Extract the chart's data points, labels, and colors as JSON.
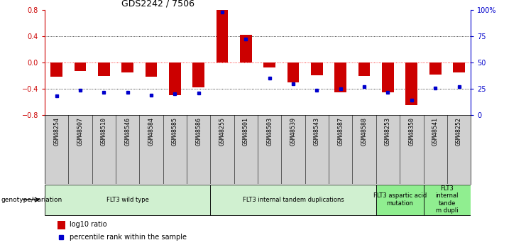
{
  "title": "GDS2242 / 7506",
  "samples": [
    "GSM48254",
    "GSM48507",
    "GSM48510",
    "GSM48546",
    "GSM48584",
    "GSM48585",
    "GSM48586",
    "GSM48255",
    "GSM48501",
    "GSM48503",
    "GSM48539",
    "GSM48543",
    "GSM48587",
    "GSM48588",
    "GSM48253",
    "GSM48350",
    "GSM48541",
    "GSM48252"
  ],
  "log10_ratio": [
    -0.22,
    -0.13,
    -0.2,
    -0.15,
    -0.22,
    -0.5,
    -0.38,
    0.8,
    0.42,
    -0.08,
    -0.3,
    -0.19,
    -0.45,
    -0.2,
    -0.45,
    -0.65,
    -0.18,
    -0.15
  ],
  "percentile_rank": [
    18,
    24,
    22,
    22,
    19,
    20,
    21,
    98,
    72,
    35,
    30,
    24,
    25,
    27,
    22,
    14,
    26,
    27
  ],
  "ylim_left": [
    -0.8,
    0.8
  ],
  "ylim_right": [
    0,
    100
  ],
  "yticks_left": [
    -0.8,
    -0.4,
    0.0,
    0.4,
    0.8
  ],
  "yticks_right": [
    0,
    25,
    50,
    75,
    100
  ],
  "ytick_labels_right": [
    "0",
    "25",
    "50",
    "75",
    "100%"
  ],
  "bar_color": "#cc0000",
  "dot_color": "#0000cc",
  "groups": [
    {
      "label": "FLT3 wild type",
      "start": 0,
      "end": 7,
      "color": "#d0f0d0"
    },
    {
      "label": "FLT3 internal tandem duplications",
      "start": 7,
      "end": 14,
      "color": "#d0f0d0"
    },
    {
      "label": "FLT3 aspartic acid\nmutation",
      "start": 14,
      "end": 16,
      "color": "#90ee90"
    },
    {
      "label": "FLT3\ninternal\ntande\nm dupli",
      "start": 16,
      "end": 18,
      "color": "#90ee90"
    }
  ],
  "genotype_label": "genotype/variation",
  "legend_bar_label": "log10 ratio",
  "legend_dot_label": "percentile rank within the sample",
  "bg_color": "#ffffff",
  "tick_label_color_left": "#cc0000",
  "tick_label_color_right": "#0000cc"
}
